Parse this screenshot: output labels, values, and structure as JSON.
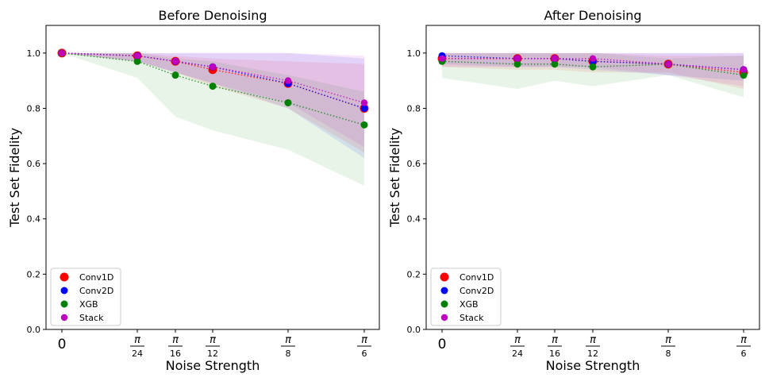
{
  "chart_data": [
    {
      "type": "line",
      "title": "Before Denoising",
      "xlabel": "Noise Strength",
      "ylabel": "Test Set Fidelity",
      "ylim": [
        0,
        1.1
      ],
      "x_ticks": [
        "0",
        "π/24",
        "π/16",
        "π/12",
        "π/8",
        "π/6"
      ],
      "y_ticks": [
        "0.0",
        "0.2",
        "0.4",
        "0.6",
        "0.8",
        "1.0"
      ],
      "legend_position": "lower-left",
      "series": [
        {
          "name": "Conv1D",
          "color": "#ff0000",
          "values": [
            1.0,
            0.99,
            0.97,
            0.94,
            0.89,
            0.8
          ],
          "lower": [
            1.0,
            0.97,
            0.93,
            0.88,
            0.8,
            0.64
          ],
          "upper": [
            1.0,
            1.0,
            0.99,
            0.98,
            0.97,
            0.96
          ]
        },
        {
          "name": "Conv2D",
          "color": "#0000ff",
          "values": [
            1.0,
            0.99,
            0.97,
            0.95,
            0.89,
            0.8
          ],
          "lower": [
            1.0,
            0.97,
            0.93,
            0.89,
            0.8,
            0.62
          ],
          "upper": [
            1.0,
            1.0,
            1.0,
            1.0,
            1.0,
            0.98
          ]
        },
        {
          "name": "XGB",
          "color": "#008000",
          "values": [
            1.0,
            0.97,
            0.92,
            0.88,
            0.82,
            0.74
          ],
          "lower": [
            1.0,
            0.91,
            0.77,
            0.72,
            0.65,
            0.52
          ],
          "upper": [
            1.0,
            1.0,
            0.98,
            0.97,
            0.92,
            0.86
          ]
        },
        {
          "name": "Stack",
          "color": "#bf00bf",
          "values": [
            1.0,
            0.99,
            0.97,
            0.95,
            0.9,
            0.82
          ],
          "lower": [
            1.0,
            0.97,
            0.93,
            0.89,
            0.82,
            0.66
          ],
          "upper": [
            1.0,
            1.0,
            1.0,
            1.0,
            1.0,
            0.99
          ]
        }
      ]
    },
    {
      "type": "line",
      "title": "After Denoising",
      "xlabel": "Noise Strength",
      "ylabel": "Test Set Fidelity",
      "ylim": [
        0,
        1.1
      ],
      "x_ticks": [
        "0",
        "π/24",
        "π/16",
        "π/12",
        "π/8",
        "π/6"
      ],
      "y_ticks": [
        "0.0",
        "0.2",
        "0.4",
        "0.6",
        "0.8",
        "1.0"
      ],
      "legend_position": "lower-left",
      "series": [
        {
          "name": "Conv1D",
          "color": "#ff0000",
          "values": [
            0.98,
            0.98,
            0.98,
            0.97,
            0.96,
            0.93
          ],
          "lower": [
            0.95,
            0.94,
            0.94,
            0.93,
            0.93,
            0.87
          ],
          "upper": [
            1.0,
            1.0,
            1.0,
            1.0,
            0.99,
            0.99
          ]
        },
        {
          "name": "Conv2D",
          "color": "#0000ff",
          "values": [
            0.99,
            0.98,
            0.98,
            0.97,
            0.96,
            0.94
          ],
          "lower": [
            0.96,
            0.95,
            0.95,
            0.94,
            0.92,
            0.9
          ],
          "upper": [
            1.0,
            1.0,
            1.0,
            1.0,
            1.0,
            1.0
          ]
        },
        {
          "name": "XGB",
          "color": "#008000",
          "values": [
            0.97,
            0.96,
            0.96,
            0.95,
            0.96,
            0.92
          ],
          "lower": [
            0.91,
            0.87,
            0.9,
            0.88,
            0.92,
            0.84
          ],
          "upper": [
            1.0,
            1.0,
            1.0,
            1.0,
            0.98,
            0.99
          ]
        },
        {
          "name": "Stack",
          "color": "#bf00bf",
          "values": [
            0.98,
            0.98,
            0.98,
            0.98,
            0.96,
            0.94
          ],
          "lower": [
            0.95,
            0.95,
            0.95,
            0.95,
            0.92,
            0.88
          ],
          "upper": [
            1.0,
            1.0,
            1.0,
            1.0,
            1.0,
            1.0
          ]
        }
      ]
    }
  ]
}
